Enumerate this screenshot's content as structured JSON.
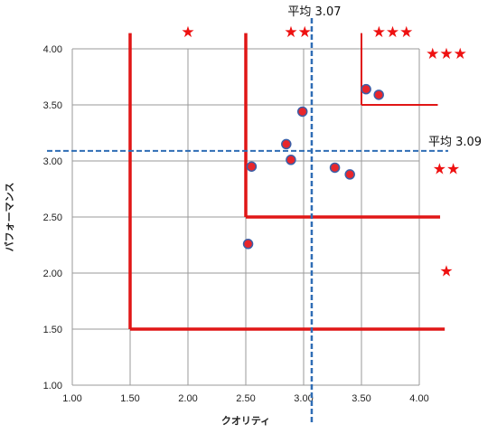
{
  "chart_data": {
    "type": "scatter",
    "xlabel": "クオリティ",
    "ylabel": "パフォーマンス",
    "xlim": [
      1.0,
      4.0
    ],
    "ylim": [
      1.0,
      4.0
    ],
    "x_ticks": [
      "1.00",
      "1.50",
      "2.00",
      "2.50",
      "3.00",
      "3.50",
      "4.00"
    ],
    "y_ticks": [
      "1.00",
      "1.50",
      "2.00",
      "2.50",
      "3.00",
      "3.50",
      "4.00"
    ],
    "grid": true,
    "points": [
      {
        "x": 2.52,
        "y": 2.26
      },
      {
        "x": 2.55,
        "y": 2.95
      },
      {
        "x": 2.85,
        "y": 3.15
      },
      {
        "x": 2.89,
        "y": 3.01
      },
      {
        "x": 2.99,
        "y": 3.44
      },
      {
        "x": 3.27,
        "y": 2.94
      },
      {
        "x": 3.4,
        "y": 2.88
      },
      {
        "x": 3.54,
        "y": 3.64
      },
      {
        "x": 3.65,
        "y": 3.59
      }
    ],
    "point_color": "#e8262b",
    "point_edge_color": "#3a5fa8",
    "averages": {
      "x": {
        "value": 3.07,
        "label": "平均 3.07"
      },
      "y": {
        "value": 3.09,
        "label": "平均 3.09"
      }
    },
    "average_line_color": "#2f6db5",
    "zones": [
      {
        "x_start": 1.5,
        "y_start": 1.5,
        "x_end": 4.22,
        "y_end": 4.14,
        "rating": "★"
      },
      {
        "x_start": 2.5,
        "y_start": 2.5,
        "x_end": 4.18,
        "y_end": 4.14,
        "rating": "★★"
      },
      {
        "x_start": 3.5,
        "y_start": 3.5,
        "x_end": 4.16,
        "y_end": 4.14,
        "rating": "★★★"
      }
    ],
    "zone_line_color": "#e01616",
    "zone_labels_top": [
      {
        "text": "★",
        "x": 2.0
      },
      {
        "text": "★★",
        "x": 2.95
      },
      {
        "text": "★★★",
        "x": 3.77
      }
    ],
    "zone_labels_right": [
      {
        "text": "★★★",
        "y": 3.96
      },
      {
        "text": "★★",
        "y": 2.93
      },
      {
        "text": "★",
        "y": 2.02
      }
    ]
  }
}
